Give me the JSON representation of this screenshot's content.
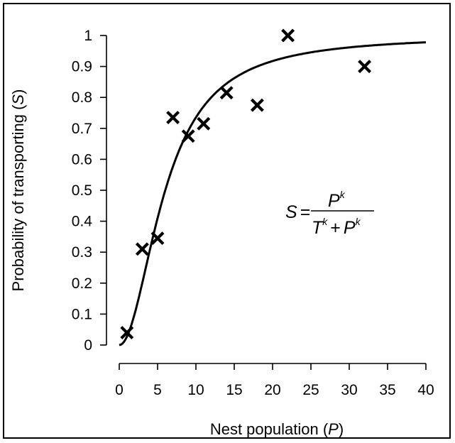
{
  "chart_data": {
    "type": "scatter",
    "xlabel": {
      "text": "Nest population (",
      "var": "P",
      "close": ")"
    },
    "ylabel": {
      "text": "Probability of transporting (",
      "var": "S",
      "close": ")"
    },
    "xlim": [
      0,
      40
    ],
    "ylim": [
      0,
      1
    ],
    "x_ticks": [
      0,
      5,
      10,
      15,
      20,
      25,
      30,
      35,
      40
    ],
    "y_ticks": [
      0,
      0.1,
      0.2,
      0.3,
      0.4,
      0.5,
      0.6,
      0.7,
      0.8,
      0.9,
      1
    ],
    "x_tick_labels": [
      "0",
      "5",
      "10",
      "15",
      "20",
      "25",
      "30",
      "35",
      "40"
    ],
    "y_tick_labels": [
      "0",
      "0.1",
      "0.2",
      "0.3",
      "0.4",
      "0.5",
      "0.6",
      "0.7",
      "0.8",
      "0.9",
      "1"
    ],
    "series": [
      {
        "type": "scatter",
        "marker": "x",
        "x": [
          1,
          3,
          5,
          7,
          9,
          11,
          14,
          18,
          22,
          32
        ],
        "y": [
          0.04,
          0.31,
          0.345,
          0.735,
          0.675,
          0.715,
          0.815,
          0.775,
          1.0,
          0.9
        ]
      },
      {
        "type": "line",
        "model": {
          "T": 6.0,
          "k": 2.0
        }
      }
    ],
    "equation": {
      "lhs": "S",
      "eq": "=",
      "num": "P",
      "den_a": "T",
      "plus": "+",
      "den_b": "P",
      "exp": "k"
    },
    "grid": false,
    "colors": {
      "ink": "#000000",
      "background": "#ffffff"
    }
  }
}
